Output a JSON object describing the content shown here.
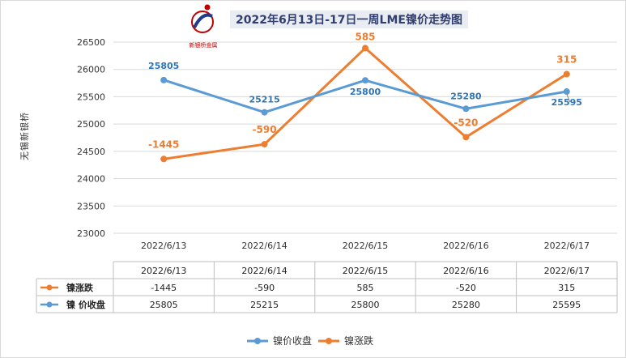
{
  "logo": {
    "caption": "新银桥金属"
  },
  "chart_data": {
    "type": "line",
    "title": "2022年6月13日-17日一周LME镍价走势图",
    "ylabel": "无锡新银桥",
    "xlabel": "",
    "categories": [
      "2022/6/13",
      "2022/6/14",
      "2022/6/15",
      "2022/6/16",
      "2022/6/17"
    ],
    "ylim": [
      23000,
      26500
    ],
    "yticks": [
      23000,
      23500,
      24000,
      24500,
      25000,
      25500,
      26000,
      26500
    ],
    "grid": true,
    "legend": "bottom",
    "series": [
      {
        "name": "镍价收盘",
        "table_label": "镍 价收盘",
        "color": "#5B9BD5",
        "label_color": "#2E75B6",
        "values": [
          25805,
          25215,
          25800,
          25280,
          25595
        ],
        "labels": [
          "25805",
          "25215",
          "25800",
          "25280",
          "25595"
        ]
      },
      {
        "name": "镍涨跌",
        "table_label": "镍涨跌",
        "color": "#ED7D31",
        "label_color": "#ED7D31",
        "plotted_values": [
          24360,
          24630,
          26390,
          24760,
          25915
        ],
        "labels": [
          "-1445",
          "-590",
          "585",
          "-520",
          "315"
        ]
      }
    ]
  }
}
